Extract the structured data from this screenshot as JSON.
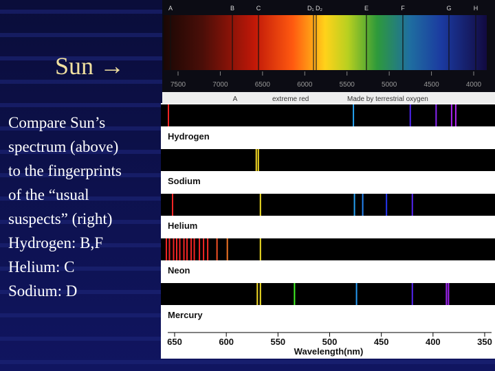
{
  "slide": {
    "title": "Sun →",
    "body": [
      "Compare Sun’s",
      "spectrum (above)",
      "to the fingerprints",
      "of the “usual",
      "suspects” (right)",
      "Hydrogen: B,F",
      "Helium: C",
      "Sodium: D"
    ]
  },
  "solar_spectrum": {
    "line_labels": [
      "A",
      "B",
      "C",
      "D₁ D₂",
      "E",
      "F",
      "G",
      "H"
    ],
    "xlim": [
      7500,
      4000
    ],
    "xticks": [
      7500,
      7000,
      6500,
      6000,
      5500,
      5000,
      4500,
      4000
    ],
    "captions": [
      "A",
      "extreme red",
      "Made by terrestrial oxygen"
    ]
  },
  "element_spectra": {
    "xlabel": "Wavelength(nm)",
    "xlim": [
      650,
      350
    ],
    "xticks": [
      650,
      600,
      550,
      500,
      450,
      400,
      350
    ],
    "elements": [
      {
        "name": "Hydrogen",
        "lines": [
          656,
          477,
          422,
          397,
          382,
          378
        ]
      },
      {
        "name": "Sodium",
        "lines": [
          571,
          569
        ]
      },
      {
        "name": "Helium",
        "lines": [
          652,
          567,
          476,
          468,
          445,
          420
        ]
      },
      {
        "name": "Neon",
        "lines": [
          658,
          655,
          651,
          648,
          645,
          641,
          638,
          634,
          631,
          626,
          622,
          618,
          609,
          599,
          567
        ]
      },
      {
        "name": "Mercury",
        "lines": [
          570,
          567,
          534,
          474,
          420,
          387,
          385
        ]
      }
    ]
  }
}
